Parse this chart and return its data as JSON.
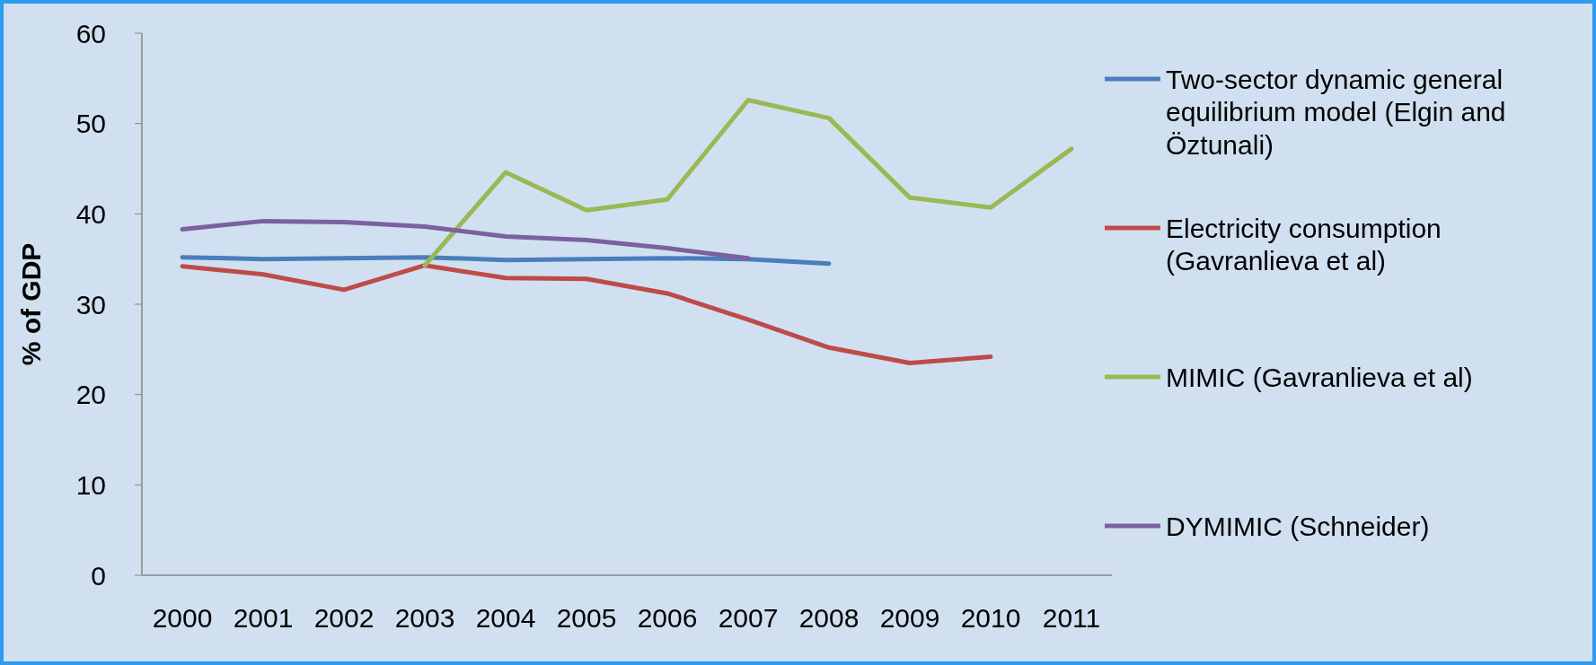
{
  "chart_data": {
    "type": "line",
    "ylabel": "% of GDP",
    "categories": [
      "2000",
      "2001",
      "2002",
      "2003",
      "2004",
      "2005",
      "2006",
      "2007",
      "2008",
      "2009",
      "2010",
      "2011"
    ],
    "ylim": [
      0,
      60
    ],
    "yticks": [
      0,
      10,
      20,
      30,
      40,
      50,
      60
    ],
    "grid": false,
    "legend": "right",
    "line_style": "solid",
    "series": [
      {
        "name": "Two-sector dynamic general equilibrium model (Elgin and Öztunali)",
        "color": "#4a7ebb",
        "values": [
          35.2,
          35.0,
          35.1,
          35.2,
          34.9,
          35.0,
          35.1,
          35.0,
          34.5,
          null,
          null,
          null
        ]
      },
      {
        "name": "Electricity consumption (Gavranlieva et al)",
        "color": "#be4b48",
        "values": [
          34.2,
          33.3,
          31.6,
          34.3,
          32.9,
          32.8,
          31.2,
          28.3,
          25.2,
          23.5,
          24.2,
          null
        ]
      },
      {
        "name": "MIMIC (Gavranlieva et al)",
        "color": "#98b954",
        "values": [
          null,
          null,
          null,
          34.3,
          44.6,
          40.4,
          41.6,
          52.6,
          50.6,
          41.8,
          40.7,
          47.2
        ]
      },
      {
        "name": "DYMIMIC (Schneider)",
        "color": "#7d60a0",
        "values": [
          38.3,
          39.2,
          39.1,
          38.6,
          37.5,
          37.1,
          36.2,
          35.1,
          null,
          null,
          null,
          null
        ]
      }
    ]
  }
}
